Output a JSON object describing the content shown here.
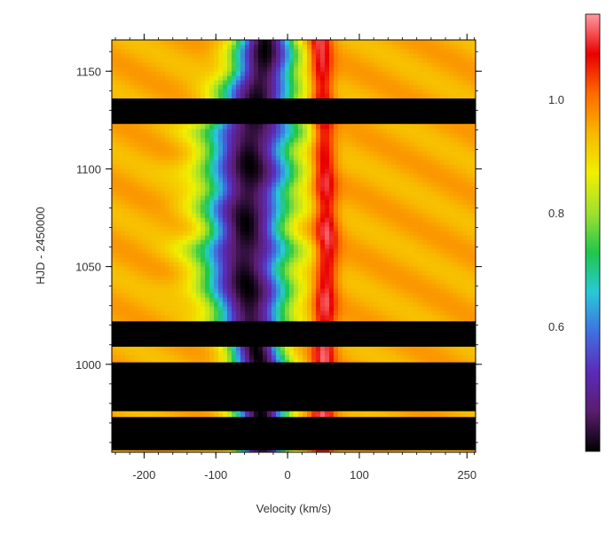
{
  "chart_data": {
    "type": "heatmap",
    "title": "",
    "xlabel": "Velocity (km/s)",
    "ylabel": "HJD - 2450000",
    "xlim": [
      -245,
      262
    ],
    "ylim": [
      955,
      1166
    ],
    "x_ticks": [
      {
        "value": -200,
        "label": "-200"
      },
      {
        "value": -100,
        "label": "-100"
      },
      {
        "value": 0,
        "label": "0"
      },
      {
        "value": 100,
        "label": "100"
      },
      {
        "value": 250,
        "label": "250"
      }
    ],
    "y_ticks": [
      {
        "value": 1000,
        "label": "1000"
      },
      {
        "value": 1050,
        "label": "1050"
      },
      {
        "value": 1100,
        "label": "1100"
      },
      {
        "value": 1150,
        "label": "1150"
      }
    ],
    "ridge_profile": [
      {
        "y": 955,
        "abs_center": -35,
        "abs_halfwidth": 40,
        "emis_center": 48
      },
      {
        "y": 1000,
        "abs_center": -40,
        "abs_halfwidth": 45,
        "emis_center": 50
      },
      {
        "y": 1030,
        "abs_center": -55,
        "abs_halfwidth": 65,
        "emis_center": 52
      },
      {
        "y": 1060,
        "abs_center": -60,
        "abs_halfwidth": 75,
        "emis_center": 55
      },
      {
        "y": 1090,
        "abs_center": -55,
        "abs_halfwidth": 70,
        "emis_center": 52
      },
      {
        "y": 1120,
        "abs_center": -50,
        "abs_halfwidth": 75,
        "emis_center": 50
      },
      {
        "y": 1140,
        "abs_center": -40,
        "abs_halfwidth": 60,
        "emis_center": 48
      },
      {
        "y": 1166,
        "abs_center": -30,
        "abs_halfwidth": 45,
        "emis_center": 45
      }
    ],
    "data_gaps_hjd": [
      [
        1123,
        1136
      ],
      [
        1009,
        1022
      ],
      [
        976,
        1001
      ],
      [
        956,
        973
      ]
    ],
    "colorbar": {
      "min": 0.38,
      "max": 1.15,
      "ticks": [
        {
          "value": 0.6,
          "label": "0.6"
        },
        {
          "value": 0.8,
          "label": "0.8"
        },
        {
          "value": 1.0,
          "label": "1.0"
        }
      ],
      "colormap": [
        "#000000",
        "#5a1d6e",
        "#5b2bb8",
        "#4070e0",
        "#28c8d8",
        "#1fc74a",
        "#9fe030",
        "#f0f000",
        "#f8b800",
        "#ff6a00",
        "#e80000",
        "#ff9aa0"
      ]
    },
    "legend": "colorbar-right",
    "grid": false
  }
}
